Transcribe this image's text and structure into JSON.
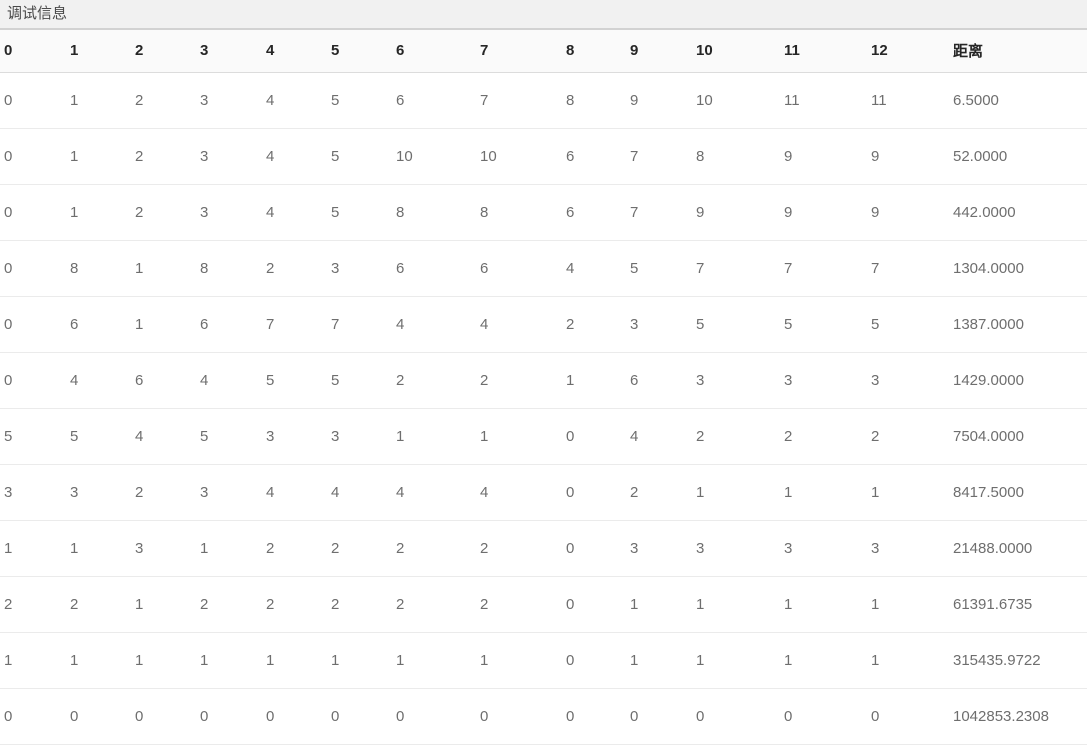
{
  "panel": {
    "title": "调试信息"
  },
  "table": {
    "columns": [
      "0",
      "1",
      "2",
      "3",
      "4",
      "5",
      "6",
      "7",
      "8",
      "9",
      "10",
      "11",
      "12",
      "距离"
    ],
    "distance_column_label": "距离",
    "rows": [
      [
        "0",
        "1",
        "2",
        "3",
        "4",
        "5",
        "6",
        "7",
        "8",
        "9",
        "10",
        "11",
        "11",
        "6.5000"
      ],
      [
        "0",
        "1",
        "2",
        "3",
        "4",
        "5",
        "10",
        "10",
        "6",
        "7",
        "8",
        "9",
        "9",
        "52.0000"
      ],
      [
        "0",
        "1",
        "2",
        "3",
        "4",
        "5",
        "8",
        "8",
        "6",
        "7",
        "9",
        "9",
        "9",
        "442.0000"
      ],
      [
        "0",
        "8",
        "1",
        "8",
        "2",
        "3",
        "6",
        "6",
        "4",
        "5",
        "7",
        "7",
        "7",
        "1304.0000"
      ],
      [
        "0",
        "6",
        "1",
        "6",
        "7",
        "7",
        "4",
        "4",
        "2",
        "3",
        "5",
        "5",
        "5",
        "1387.0000"
      ],
      [
        "0",
        "4",
        "6",
        "4",
        "5",
        "5",
        "2",
        "2",
        "1",
        "6",
        "3",
        "3",
        "3",
        "1429.0000"
      ],
      [
        "5",
        "5",
        "4",
        "5",
        "3",
        "3",
        "1",
        "1",
        "0",
        "4",
        "2",
        "2",
        "2",
        "7504.0000"
      ],
      [
        "3",
        "3",
        "2",
        "3",
        "4",
        "4",
        "4",
        "4",
        "0",
        "2",
        "1",
        "1",
        "1",
        "8417.5000"
      ],
      [
        "1",
        "1",
        "3",
        "1",
        "2",
        "2",
        "2",
        "2",
        "0",
        "3",
        "3",
        "3",
        "3",
        "21488.0000"
      ],
      [
        "2",
        "2",
        "1",
        "2",
        "2",
        "2",
        "2",
        "2",
        "0",
        "1",
        "1",
        "1",
        "1",
        "61391.6735"
      ],
      [
        "1",
        "1",
        "1",
        "1",
        "1",
        "1",
        "1",
        "1",
        "0",
        "1",
        "1",
        "1",
        "1",
        "315435.9722"
      ],
      [
        "0",
        "0",
        "0",
        "0",
        "0",
        "0",
        "0",
        "0",
        "0",
        "0",
        "0",
        "0",
        "0",
        "1042853.2308"
      ]
    ]
  },
  "colors": {
    "title_bar_bg": "#f1f1f1",
    "header_bg": "#fafafa",
    "row_border": "#ebebeb",
    "header_text": "#262626",
    "cell_text": "#6e6e6e"
  }
}
